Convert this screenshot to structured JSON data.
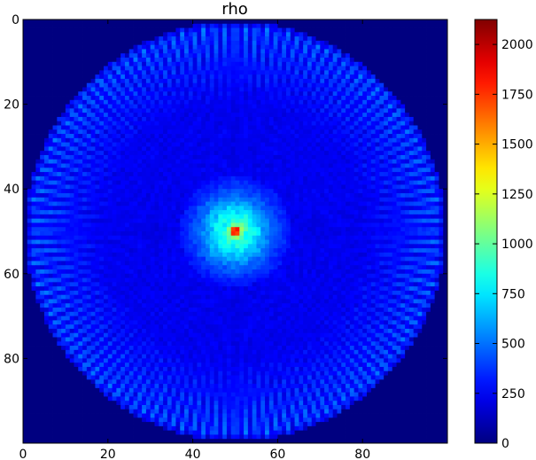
{
  "chart_data": {
    "type": "heatmap",
    "title": "rho",
    "xlabel": "",
    "ylabel": "",
    "xlim": [
      0,
      100
    ],
    "ylim": [
      100,
      0
    ],
    "x_ticks": [
      0,
      20,
      40,
      60,
      80
    ],
    "y_ticks": [
      0,
      20,
      40,
      60,
      80
    ],
    "colormap": "jet",
    "colormap_stops": [
      "#00007f",
      "#0000ff",
      "#00ffff",
      "#ffff00",
      "#ff0000",
      "#7f0000"
    ],
    "background_color": "#00007f",
    "colorbar": {
      "range": [
        0,
        2125
      ],
      "ticks": [
        0,
        250,
        500,
        750,
        1000,
        1250,
        1500,
        1750,
        2000
      ]
    },
    "field": {
      "description_values": {
        "disk_center": [
          50,
          50
        ],
        "disk_radius": 49.5,
        "outside_value": 0,
        "disk_base_value": 200,
        "radial_streak_count": 120,
        "rim_peak_value": 520,
        "core_radius": 6,
        "core_value": 900,
        "peak_location": [
          49.5,
          49.5
        ],
        "peak_value": 2125
      }
    }
  }
}
